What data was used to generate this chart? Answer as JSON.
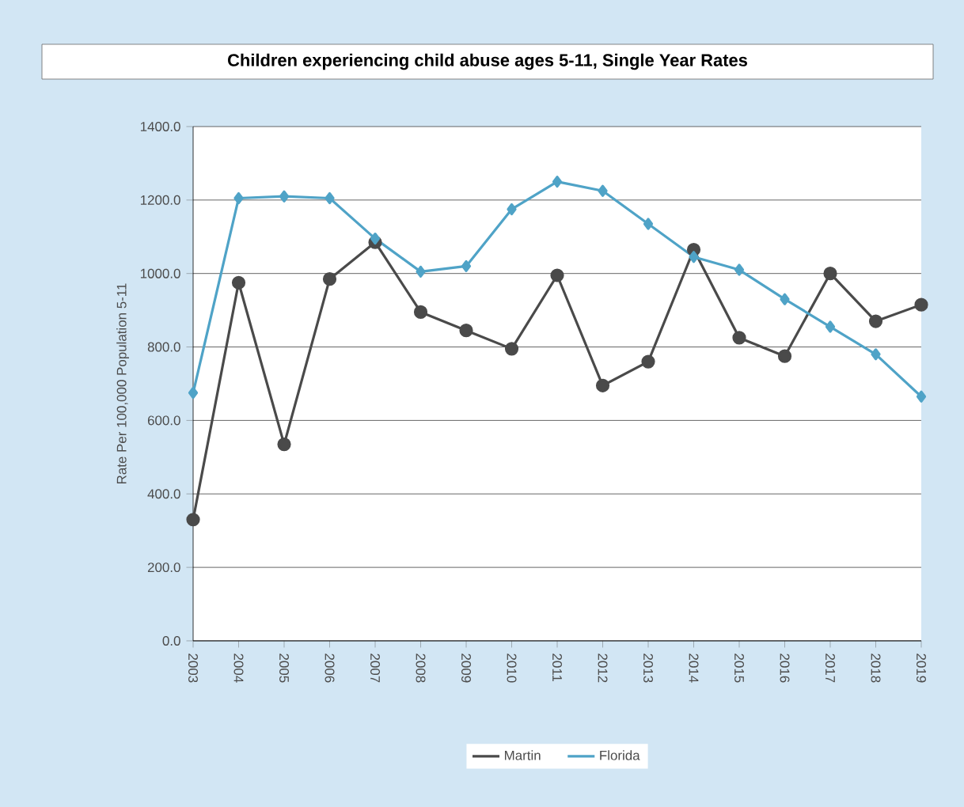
{
  "chart_data": {
    "type": "line",
    "title": "Children experiencing child abuse ages 5-11, Single Year Rates",
    "ylabel": "Rate Per 100,000 Population 5-11",
    "categories": [
      "2003",
      "2004",
      "2005",
      "2006",
      "2007",
      "2008",
      "2009",
      "2010",
      "2011",
      "2012",
      "2013",
      "2014",
      "2015",
      "2016",
      "2017",
      "2018",
      "2019"
    ],
    "series": [
      {
        "name": "Martin",
        "color": "#4a4a4a",
        "marker": "circle",
        "values": [
          330,
          975,
          535,
          985,
          1085,
          895,
          845,
          795,
          995,
          695,
          760,
          1065,
          825,
          775,
          1000,
          870,
          915
        ]
      },
      {
        "name": "Florida",
        "color": "#4fa3c7",
        "marker": "diamond",
        "values": [
          675,
          1205,
          1210,
          1205,
          1095,
          1005,
          1020,
          1175,
          1250,
          1225,
          1135,
          1045,
          1010,
          930,
          855,
          780,
          665
        ]
      }
    ],
    "ylim": [
      0,
      1400
    ],
    "yticks": [
      {
        "value": 0,
        "label": "0.0"
      },
      {
        "value": 200,
        "label": "200.0"
      },
      {
        "value": 400,
        "label": "400.0"
      },
      {
        "value": 600,
        "label": "600.0"
      },
      {
        "value": 800,
        "label": "800.0"
      },
      {
        "value": 1000,
        "label": "1000.0"
      },
      {
        "value": 1200,
        "label": "1200.0"
      },
      {
        "value": 1400,
        "label": "1400.0"
      }
    ],
    "grid": "y",
    "legend": "bottom"
  }
}
